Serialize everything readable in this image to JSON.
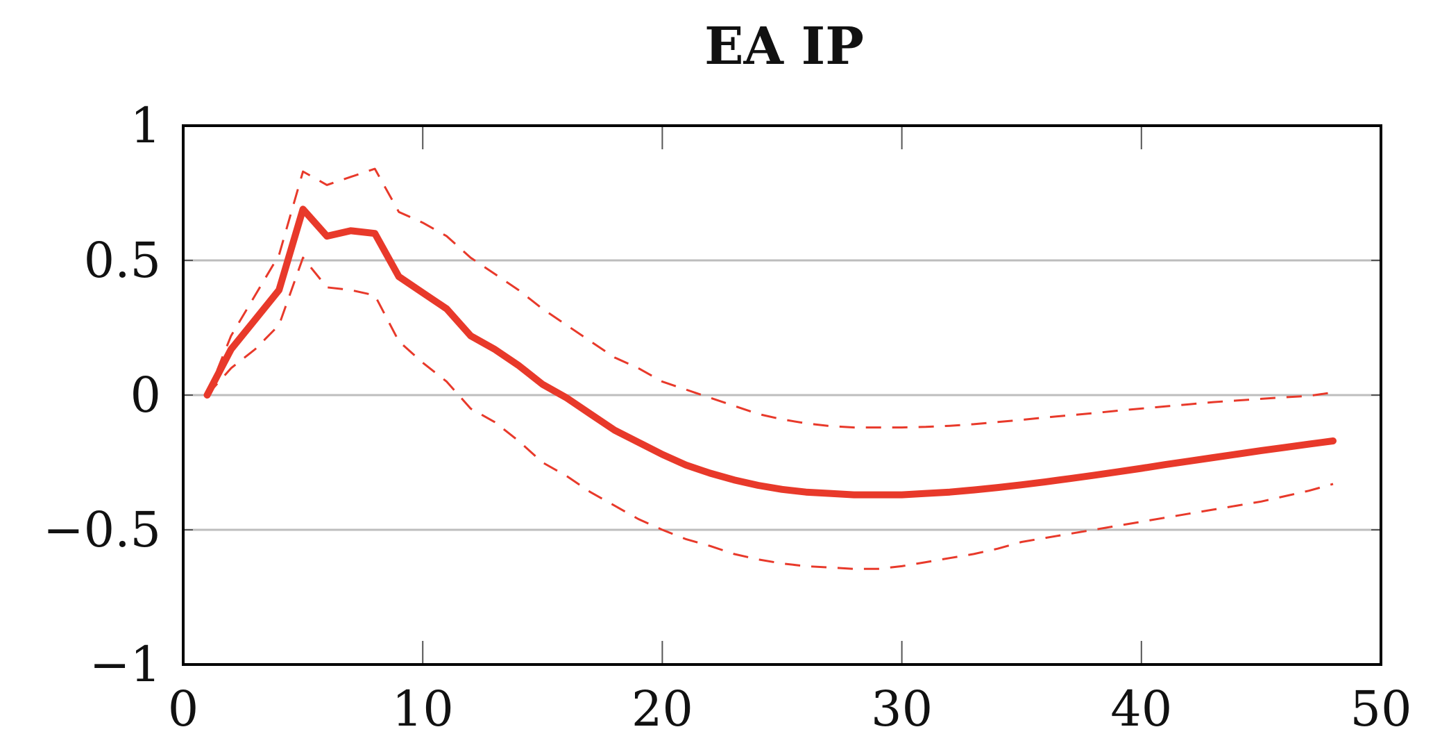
{
  "chart_data": {
    "type": "line",
    "title": "EA IP",
    "xlabel": "",
    "ylabel": "",
    "xlim": [
      0,
      50
    ],
    "ylim": [
      -1,
      1
    ],
    "xticks": [
      0,
      10,
      20,
      30,
      40,
      50
    ],
    "xtick_labels": [
      "0",
      "10",
      "20",
      "30",
      "40",
      "50"
    ],
    "yticks": [
      1,
      0.5,
      0,
      -0.5,
      -1
    ],
    "ytick_labels": [
      "1",
      "0.5",
      "0",
      "−0.5",
      "−1"
    ],
    "grid": "horizontal",
    "legend": "none",
    "series": [
      {
        "role": "estimate",
        "style": "solid",
        "color": "#e8392a",
        "x": [
          1,
          2,
          3,
          4,
          5,
          6,
          7,
          8,
          9,
          10,
          11,
          12,
          13,
          14,
          15,
          16,
          17,
          18,
          19,
          20,
          21,
          22,
          23,
          24,
          25,
          26,
          27,
          28,
          29,
          30,
          31,
          32,
          33,
          34,
          35,
          36,
          37,
          38,
          39,
          40,
          41,
          42,
          43,
          44,
          45,
          46,
          47,
          48
        ],
        "y": [
          0.0,
          0.17,
          0.28,
          0.39,
          0.69,
          0.59,
          0.61,
          0.6,
          0.44,
          0.38,
          0.32,
          0.22,
          0.17,
          0.11,
          0.04,
          -0.01,
          -0.07,
          -0.13,
          -0.175,
          -0.22,
          -0.26,
          -0.29,
          -0.315,
          -0.335,
          -0.35,
          -0.36,
          -0.365,
          -0.37,
          -0.37,
          -0.37,
          -0.365,
          -0.36,
          -0.352,
          -0.343,
          -0.333,
          -0.322,
          -0.31,
          -0.298,
          -0.285,
          -0.272,
          -0.258,
          -0.245,
          -0.232,
          -0.219,
          -0.206,
          -0.194,
          -0.182,
          -0.17
        ]
      },
      {
        "role": "upper-band",
        "style": "dashed",
        "color": "#e8392a",
        "x": [
          1,
          2,
          3,
          4,
          5,
          6,
          7,
          8,
          9,
          10,
          11,
          12,
          13,
          14,
          15,
          16,
          17,
          18,
          19,
          20,
          21,
          22,
          23,
          24,
          25,
          26,
          27,
          28,
          29,
          30,
          31,
          32,
          33,
          34,
          35,
          36,
          37,
          38,
          39,
          40,
          41,
          42,
          43,
          44,
          45,
          46,
          47,
          48
        ],
        "y": [
          0.0,
          0.22,
          0.37,
          0.52,
          0.83,
          0.78,
          0.81,
          0.84,
          0.68,
          0.64,
          0.59,
          0.51,
          0.45,
          0.39,
          0.32,
          0.26,
          0.2,
          0.14,
          0.1,
          0.05,
          0.02,
          -0.01,
          -0.04,
          -0.07,
          -0.09,
          -0.105,
          -0.115,
          -0.12,
          -0.12,
          -0.12,
          -0.118,
          -0.114,
          -0.108,
          -0.1,
          -0.092,
          -0.083,
          -0.075,
          -0.067,
          -0.058,
          -0.05,
          -0.042,
          -0.034,
          -0.026,
          -0.02,
          -0.014,
          -0.008,
          -0.003,
          0.01
        ]
      },
      {
        "role": "lower-band",
        "style": "dashed",
        "color": "#e8392a",
        "x": [
          1,
          2,
          3,
          4,
          5,
          6,
          7,
          8,
          9,
          10,
          11,
          12,
          13,
          14,
          15,
          16,
          17,
          18,
          19,
          20,
          21,
          22,
          23,
          24,
          25,
          26,
          27,
          28,
          29,
          30,
          31,
          32,
          33,
          34,
          35,
          36,
          37,
          38,
          39,
          40,
          41,
          42,
          43,
          44,
          45,
          46,
          47,
          48
        ],
        "y": [
          0.0,
          0.1,
          0.17,
          0.26,
          0.51,
          0.4,
          0.39,
          0.37,
          0.2,
          0.12,
          0.05,
          -0.05,
          -0.1,
          -0.17,
          -0.25,
          -0.3,
          -0.36,
          -0.41,
          -0.46,
          -0.5,
          -0.535,
          -0.56,
          -0.59,
          -0.61,
          -0.625,
          -0.635,
          -0.64,
          -0.645,
          -0.645,
          -0.635,
          -0.62,
          -0.605,
          -0.59,
          -0.57,
          -0.545,
          -0.53,
          -0.515,
          -0.5,
          -0.485,
          -0.47,
          -0.455,
          -0.44,
          -0.425,
          -0.41,
          -0.395,
          -0.375,
          -0.355,
          -0.33
        ]
      }
    ]
  }
}
